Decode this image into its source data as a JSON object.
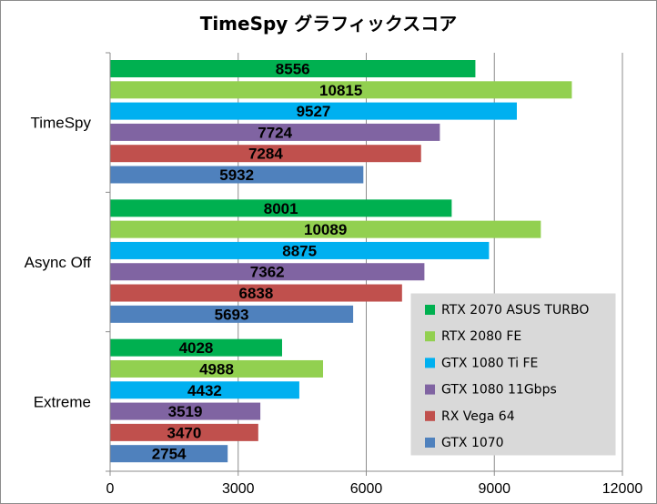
{
  "chart_data": {
    "type": "bar",
    "orientation": "horizontal",
    "title": "TimeSpy グラフィックスコア",
    "categories": [
      "TimeSpy",
      "Async Off",
      "Extreme"
    ],
    "series": [
      {
        "name": "RTX 2070 ASUS TURBO",
        "color": "#00b050",
        "values": [
          8556,
          8001,
          4028
        ]
      },
      {
        "name": "RTX 2080 FE",
        "color": "#92d050",
        "values": [
          10815,
          10089,
          4988
        ]
      },
      {
        "name": "GTX 1080 Ti FE",
        "color": "#00b0f0",
        "values": [
          9527,
          8875,
          4432
        ]
      },
      {
        "name": "GTX 1080 11Gbps",
        "color": "#8064a2",
        "values": [
          7724,
          7362,
          3519
        ]
      },
      {
        "name": "RX Vega 64",
        "color": "#c0504d",
        "values": [
          7284,
          6838,
          3470
        ]
      },
      {
        "name": "GTX 1070",
        "color": "#4f81bd",
        "values": [
          5932,
          5693,
          2754
        ]
      }
    ],
    "xlim": [
      0,
      12000
    ],
    "xticks": [
      0,
      3000,
      6000,
      9000,
      12000
    ],
    "grid": true,
    "legend_position": "bottom-right",
    "legend_background": "#d9d9d9",
    "plot_background": "#ffffff"
  }
}
